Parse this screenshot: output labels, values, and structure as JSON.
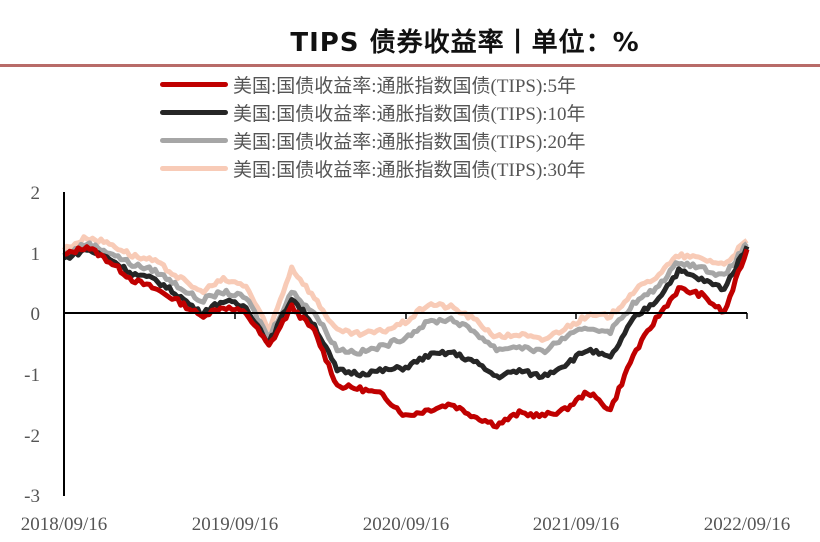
{
  "header": {
    "title": "TIPS 债券收益率丨单位：%"
  },
  "colors": {
    "rule": "#b86b68",
    "tips5y": "#c00000",
    "tips10y": "#262626",
    "tips20y": "#a6a6a6",
    "tips30y": "#f8cbb7"
  },
  "legend": [
    {
      "label": "美国:国债收益率:通胀指数国债(TIPS):5年",
      "color": "#c00000"
    },
    {
      "label": "美国:国债收益率:通胀指数国债(TIPS):10年",
      "color": "#262626"
    },
    {
      "label": "美国:国债收益率:通胀指数国债(TIPS):20年",
      "color": "#a6a6a6"
    },
    {
      "label": "美国:国债收益率:通胀指数国债(TIPS):30年",
      "color": "#f8cbb7"
    }
  ],
  "axes": {
    "y_ticks": [
      "2",
      "1",
      "0",
      "-1",
      "-2",
      "-3"
    ],
    "x_ticks": [
      "2018/09/16",
      "2019/09/16",
      "2020/09/16",
      "2021/09/16",
      "2022/09/16"
    ]
  },
  "chart_data": {
    "type": "line",
    "title": "TIPS 债券收益率丨单位：%",
    "xlabel": "",
    "ylabel": "",
    "ylim": [
      -3,
      2
    ],
    "grid": false,
    "legend_position": "top",
    "x": [
      "2018-09",
      "2018-11",
      "2019-01",
      "2019-03",
      "2019-05",
      "2019-07",
      "2019-09",
      "2019-11",
      "2020-01",
      "2020-03a",
      "2020-03b",
      "2020-05",
      "2020-07",
      "2020-09",
      "2020-11",
      "2021-01",
      "2021-02",
      "2021-03",
      "2021-05",
      "2021-07",
      "2021-09",
      "2021-11",
      "2022-01",
      "2022-02",
      "2022-03",
      "2022-04",
      "2022-05",
      "2022-06",
      "2022-07",
      "2022-08",
      "2022-09"
    ],
    "series": [
      {
        "name": "美国:国债收益率:通胀指数国债(TIPS):5年",
        "values": [
          0.95,
          1.1,
          0.85,
          0.55,
          0.4,
          0.2,
          -0.05,
          0.1,
          0.0,
          -0.55,
          0.1,
          -0.3,
          -1.2,
          -1.25,
          -1.35,
          -1.7,
          -1.6,
          -1.5,
          -1.7,
          -1.85,
          -1.65,
          -1.7,
          -1.6,
          -1.3,
          -1.6,
          -0.7,
          -0.1,
          0.4,
          0.3,
          0.0,
          1.05
        ]
      },
      {
        "name": "美国:国债收益率:通胀指数国债(TIPS):10年",
        "values": [
          0.9,
          1.05,
          0.9,
          0.65,
          0.55,
          0.3,
          0.0,
          0.2,
          0.1,
          -0.5,
          0.25,
          -0.2,
          -0.95,
          -1.0,
          -0.95,
          -0.9,
          -0.7,
          -0.65,
          -0.8,
          -1.05,
          -0.95,
          -1.05,
          -0.85,
          -0.6,
          -0.75,
          -0.1,
          0.2,
          0.7,
          0.55,
          0.4,
          1.1
        ]
      },
      {
        "name": "美国:国债收益率:通胀指数国债(TIPS):20年",
        "values": [
          0.95,
          1.15,
          1.0,
          0.8,
          0.7,
          0.45,
          0.2,
          0.35,
          0.25,
          -0.4,
          0.35,
          0.0,
          -0.6,
          -0.65,
          -0.55,
          -0.4,
          -0.15,
          -0.1,
          -0.3,
          -0.6,
          -0.55,
          -0.65,
          -0.4,
          -0.25,
          -0.3,
          0.15,
          0.4,
          0.85,
          0.75,
          0.6,
          1.15
        ]
      },
      {
        "name": "美国:国债收益率:通胀指数国债(TIPS):30年",
        "values": [
          1.05,
          1.25,
          1.15,
          0.95,
          0.85,
          0.6,
          0.35,
          0.55,
          0.45,
          -0.3,
          0.75,
          0.25,
          -0.3,
          -0.35,
          -0.3,
          -0.15,
          0.15,
          0.1,
          -0.1,
          -0.4,
          -0.35,
          -0.45,
          -0.25,
          -0.05,
          -0.05,
          0.35,
          0.6,
          0.95,
          0.9,
          0.8,
          1.2
        ]
      }
    ]
  }
}
